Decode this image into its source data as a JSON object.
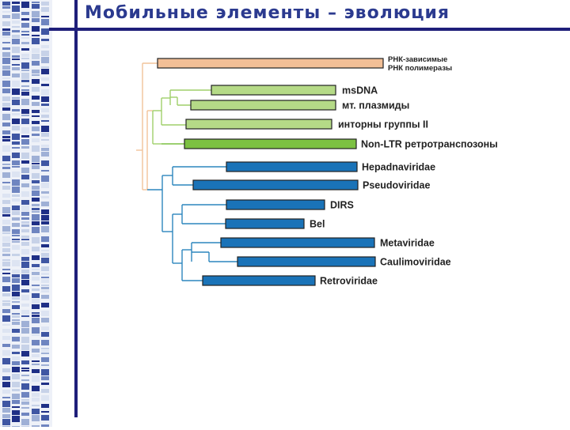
{
  "slide": {
    "title": "Мобильные элементы – эволюция"
  },
  "colors": {
    "title": "#2b3a8f",
    "accent_bar": "#1f1f7a",
    "rna_polymerase": "#f2bf96",
    "light_green": "#b5da87",
    "dark_green": "#7cc142",
    "blue": "#1a73b8",
    "tree_orange": "#f1c39a",
    "tree_green": "#9fcf6a",
    "tree_blue": "#2c86bd"
  },
  "tree": {
    "taxa": [
      {
        "id": "rna-polymerases",
        "lines": [
          "РНК-зависимые",
          "РНК полимеразы"
        ],
        "color": "#f2bf96"
      },
      {
        "id": "msdna",
        "lines": [
          "msDNA"
        ],
        "color": "#b5da87"
      },
      {
        "id": "mt-plasmids",
        "lines": [
          "мт. плазмиды"
        ],
        "color": "#b5da87"
      },
      {
        "id": "group-ii-introns",
        "lines": [
          "инторны группы II"
        ],
        "color": "#b5da87"
      },
      {
        "id": "non-ltr-retrotransposons",
        "lines": [
          "Non-LTR ретротранспозоны"
        ],
        "color": "#7cc142"
      },
      {
        "id": "hepadnaviridae",
        "lines": [
          "Hepadnaviridae"
        ],
        "color": "#1a73b8"
      },
      {
        "id": "pseudoviridae",
        "lines": [
          "Pseudoviridae"
        ],
        "color": "#1a73b8"
      },
      {
        "id": "dirs",
        "lines": [
          "DIRS"
        ],
        "color": "#1a73b8"
      },
      {
        "id": "bel",
        "lines": [
          "Bel"
        ],
        "color": "#1a73b8"
      },
      {
        "id": "metaviridae",
        "lines": [
          "Metaviridae"
        ],
        "color": "#1a73b8"
      },
      {
        "id": "caulimoviridae",
        "lines": [
          "Caulimoviridae"
        ],
        "color": "#1a73b8"
      },
      {
        "id": "retroviridae",
        "lines": [
          "Retroviridae"
        ],
        "color": "#1a73b8"
      }
    ]
  }
}
